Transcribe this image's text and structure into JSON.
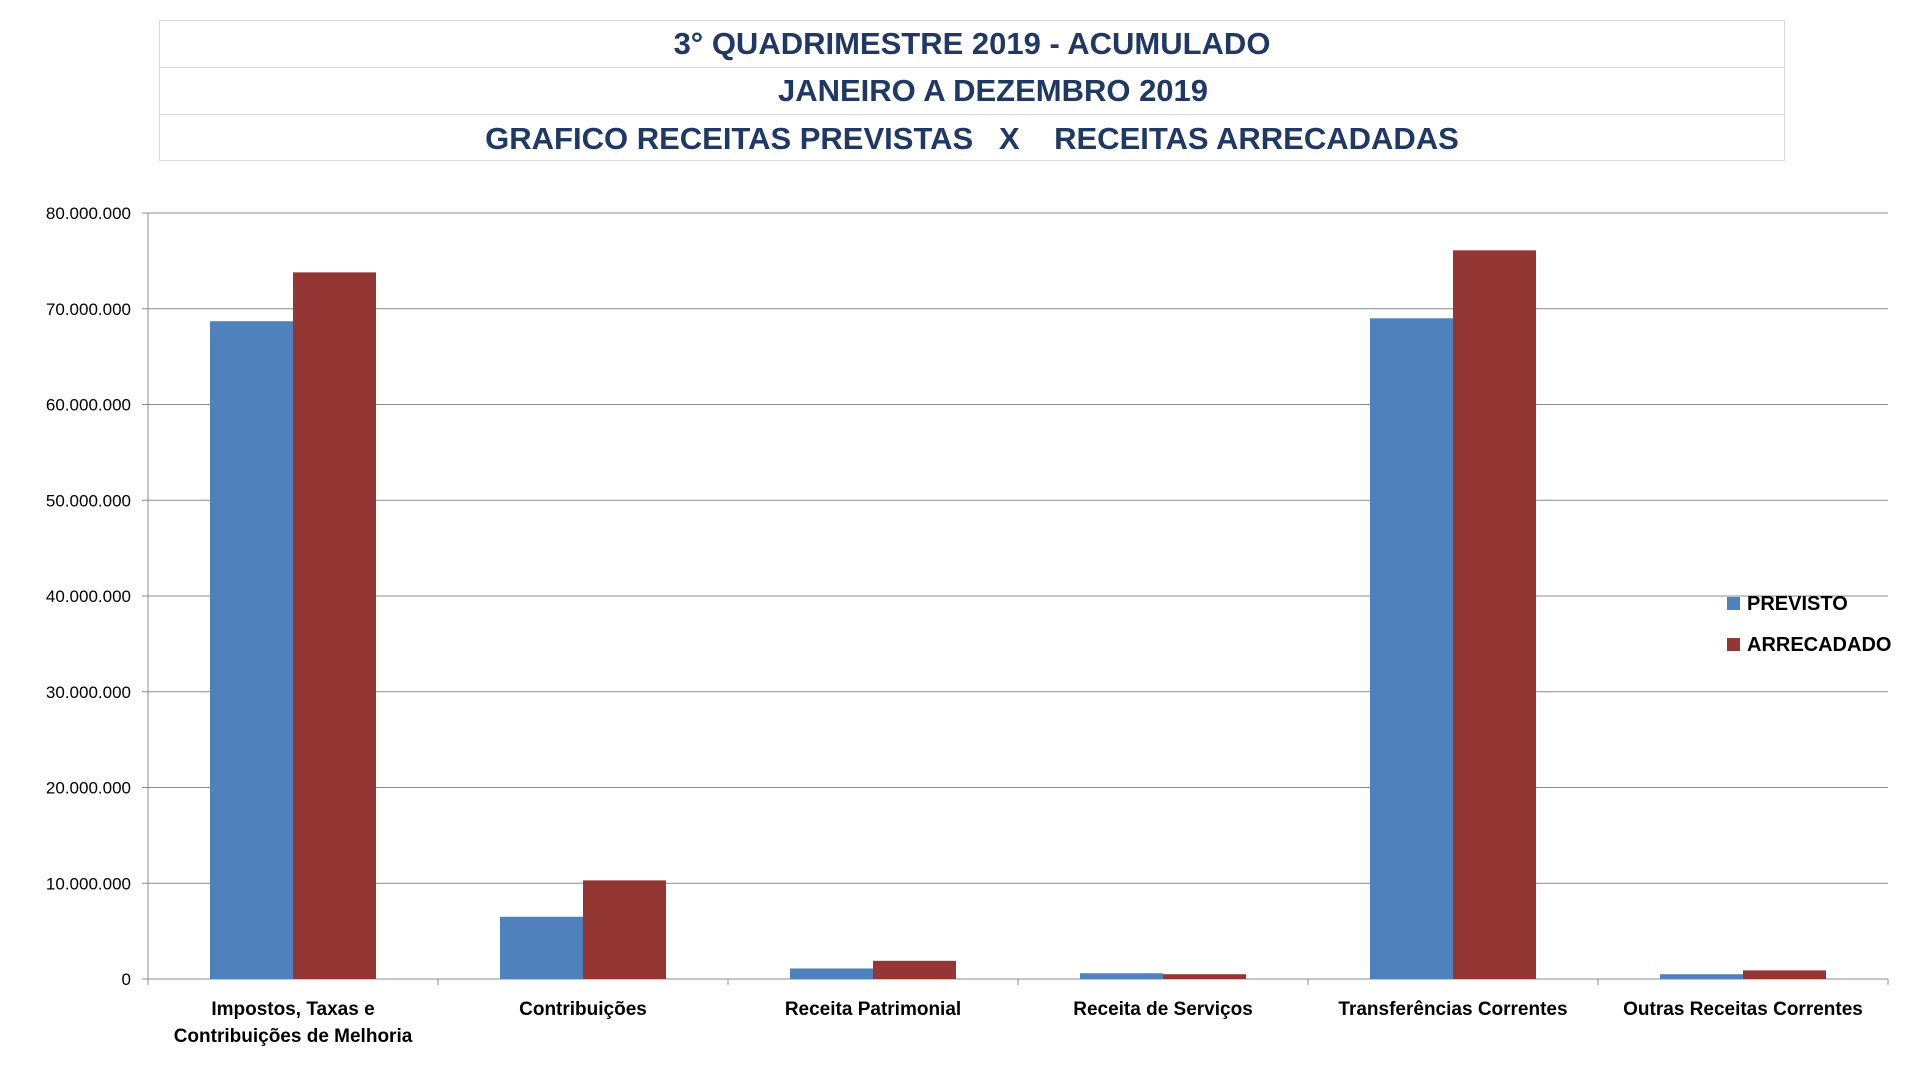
{
  "header": {
    "line1": "3° QUADRIMESTRE 2019 - ACUMULADO",
    "line2": "JANEIRO A DEZEMBRO 2019",
    "line3": "GRAFICO RECEITAS PREVISTAS   X    RECEITAS ARRECADADAS"
  },
  "chart_data": {
    "type": "bar",
    "title": "GRAFICO RECEITAS PREVISTAS   X    RECEITAS ARRECADADAS",
    "xlabel": "",
    "ylabel": "",
    "ylim": [
      0,
      80000000
    ],
    "yticks": [
      0,
      10000000,
      20000000,
      30000000,
      40000000,
      50000000,
      60000000,
      70000000,
      80000000
    ],
    "ytick_labels": [
      "0",
      "10.000.000",
      "20.000.000",
      "30.000.000",
      "40.000.000",
      "50.000.000",
      "60.000.000",
      "70.000.000",
      "80.000.000"
    ],
    "categories": [
      [
        "Impostos, Taxas e",
        "Contribuições de Melhoria"
      ],
      [
        "Contribuições"
      ],
      [
        "Receita Patrimonial"
      ],
      [
        "Receita de Serviços"
      ],
      [
        "Transferências Correntes"
      ],
      [
        "Outras Receitas Correntes"
      ]
    ],
    "series": [
      {
        "name": "PREVISTO",
        "color": "#4f81bd",
        "values": [
          68700000,
          6500000,
          1100000,
          600000,
          69000000,
          500000
        ]
      },
      {
        "name": "ARRECADADO",
        "color": "#943634",
        "values": [
          73800000,
          10300000,
          1900000,
          500000,
          76100000,
          900000
        ]
      }
    ],
    "grid": true,
    "legend_position": "right"
  }
}
